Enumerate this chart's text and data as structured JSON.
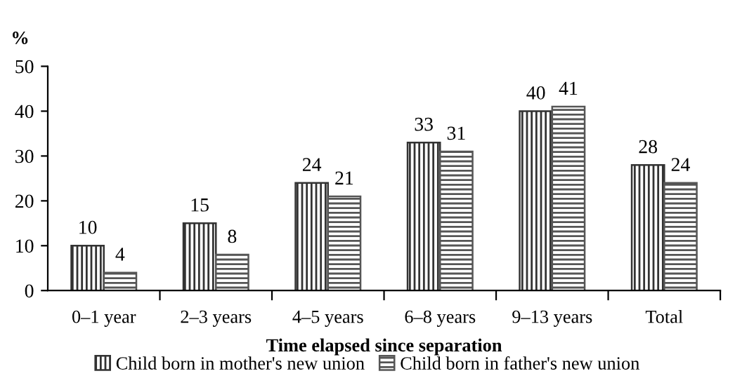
{
  "chart_data": {
    "type": "bar",
    "xlabel": "Time elapsed since separation",
    "ylabel": "%",
    "categories": [
      "0–1 year",
      "2–3 years",
      "4–5 years",
      "6–8 years",
      "9–13 years",
      "Total"
    ],
    "series": [
      {
        "name": "Child born in mother's new union",
        "color": "#333333",
        "values": [
          10,
          15,
          24,
          33,
          40,
          28
        ]
      },
      {
        "name": "Child born in father's new union",
        "color": "#555555",
        "values": [
          4,
          8,
          21,
          31,
          41,
          24
        ]
      }
    ],
    "ylim": [
      0,
      50
    ],
    "yticks": [
      0,
      10,
      20,
      30,
      40,
      50
    ],
    "grid": false,
    "legend": "bottom",
    "data_labels": true
  }
}
